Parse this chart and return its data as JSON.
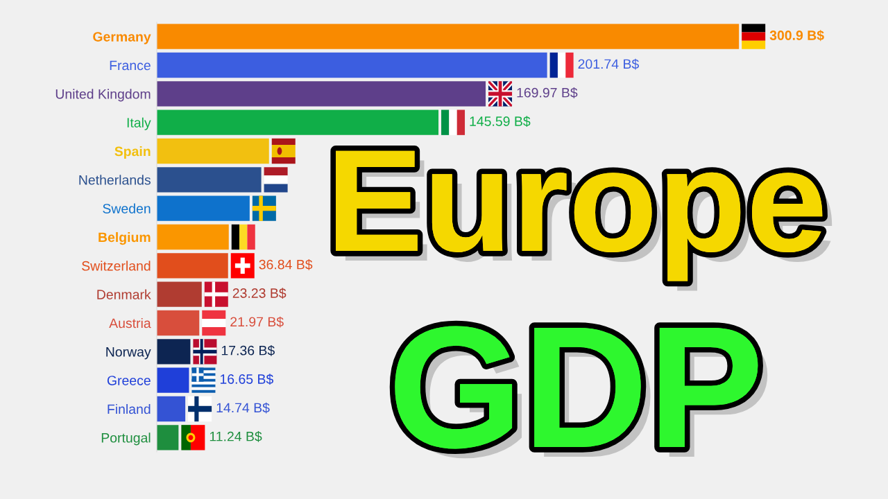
{
  "chart_data": {
    "type": "bar",
    "orientation": "horizontal",
    "title": "Europe GDP",
    "categories": [
      "Germany",
      "France",
      "United Kingdom",
      "Italy",
      "Spain",
      "Netherlands",
      "Sweden",
      "Belgium",
      "Switzerland",
      "Denmark",
      "Austria",
      "Norway",
      "Greece",
      "Finland",
      "Portugal"
    ],
    "values": [
      300.9,
      201.74,
      169.97,
      145.59,
      58,
      54,
      48,
      37.2,
      36.84,
      23.23,
      21.97,
      17.36,
      16.65,
      14.74,
      11.24
    ],
    "colors": [
      "#f98a00",
      "#3c5ee0",
      "#5e3f8a",
      "#10ae48",
      "#f2c010",
      "#2b508e",
      "#0e72cc",
      "#fa9600",
      "#e14e1c",
      "#b03c31",
      "#d84e3c",
      "#0d2552",
      "#1f3fd9",
      "#3453d4",
      "#1e8e3e"
    ],
    "value_labels": [
      "300.9 B$",
      "201.74 B$",
      "169.97 B$",
      "145.59 B$",
      null,
      null,
      null,
      null,
      "36.84 B$",
      "23.23 B$",
      "21.97 B$",
      "17.36 B$",
      "16.65 B$",
      "14.74 B$",
      "11.24 B$"
    ]
  }
}
